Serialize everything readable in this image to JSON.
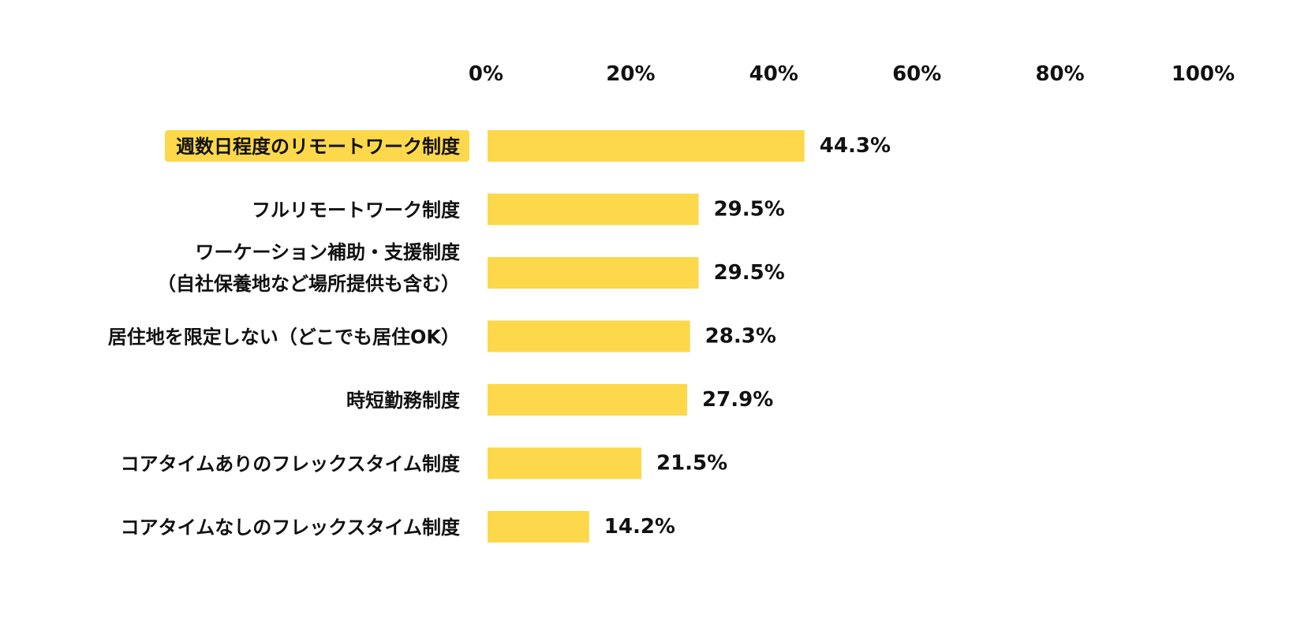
{
  "chart_data": {
    "type": "bar",
    "orientation": "horizontal",
    "title": "",
    "xlabel": "",
    "ylabel": "",
    "xlim": [
      0,
      100
    ],
    "ticks": [
      "0%",
      "20%",
      "40%",
      "60%",
      "80%",
      "100%"
    ],
    "tick_values": [
      0,
      20,
      40,
      60,
      80,
      100
    ],
    "tick_position": "top",
    "grid": false,
    "legend": "none",
    "bar_color": "#FCD84A",
    "highlight_color": "#FCD84A",
    "categories": [
      [
        "週数日程度のリモートワーク制度"
      ],
      [
        "フルリモートワーク制度"
      ],
      [
        "ワーケーション補助・支援制度",
        "（自社保養地など場所提供も含む）"
      ],
      [
        "居住地を限定しない（どこでも居住OK）"
      ],
      [
        "時短勤務制度"
      ],
      [
        "コアタイムありのフレックスタイム制度"
      ],
      [
        "コアタイムなしのフレックスタイム制度"
      ]
    ],
    "values": [
      44.3,
      29.5,
      29.5,
      28.3,
      27.9,
      21.5,
      14.2
    ],
    "value_labels": [
      "44.3%",
      "29.5%",
      "29.5%",
      "28.3%",
      "27.9%",
      "21.5%",
      "14.2%"
    ],
    "highlighted_index": 0
  }
}
